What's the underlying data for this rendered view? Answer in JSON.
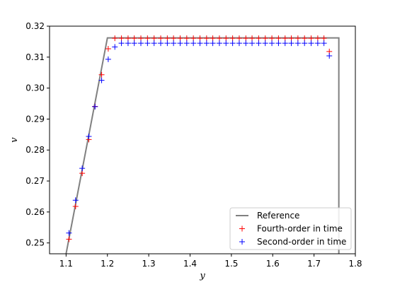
{
  "chart_data": {
    "type": "scatter",
    "title": "",
    "xlabel": "y",
    "ylabel": "v",
    "xlim": [
      1.06,
      1.8
    ],
    "ylim": [
      0.2465,
      0.32
    ],
    "xticks": [
      1.1,
      1.2,
      1.3,
      1.4,
      1.5,
      1.6,
      1.7,
      1.8
    ],
    "yticks": [
      0.25,
      0.26,
      0.27,
      0.28,
      0.29,
      0.3,
      0.31,
      0.32
    ],
    "xtick_labels": [
      "1.1",
      "1.2",
      "1.3",
      "1.4",
      "1.5",
      "1.6",
      "1.7",
      "1.8"
    ],
    "ytick_labels": [
      "0.25",
      "0.26",
      "0.27",
      "0.28",
      "0.29",
      "0.30",
      "0.31",
      "0.32"
    ],
    "grid": false,
    "legend_position": "lower-right",
    "series": [
      {
        "name": "Reference",
        "kind": "line",
        "color": "#808080",
        "x": [
          1.1,
          1.2,
          1.76,
          1.76
        ],
        "y": [
          0.2465,
          0.3162,
          0.3162,
          0.2465
        ]
      },
      {
        "name": "Fourth-order in time",
        "kind": "marker",
        "color": "#ff0000",
        "x": [
          1.107,
          1.123,
          1.139,
          1.155,
          1.17,
          1.186,
          1.202,
          1.218,
          1.234,
          1.25,
          1.265,
          1.281,
          1.297,
          1.313,
          1.329,
          1.345,
          1.36,
          1.376,
          1.392,
          1.408,
          1.424,
          1.44,
          1.455,
          1.471,
          1.487,
          1.503,
          1.519,
          1.535,
          1.55,
          1.566,
          1.582,
          1.598,
          1.614,
          1.63,
          1.645,
          1.661,
          1.677,
          1.693,
          1.709,
          1.724,
          1.737
        ],
        "y": [
          0.2512,
          0.2618,
          0.2725,
          0.2834,
          0.2941,
          0.3043,
          0.3127,
          0.3161,
          0.3161,
          0.3161,
          0.3161,
          0.3161,
          0.3161,
          0.3161,
          0.3161,
          0.3161,
          0.3161,
          0.3161,
          0.3161,
          0.3161,
          0.3161,
          0.3161,
          0.3161,
          0.3161,
          0.3161,
          0.3161,
          0.3161,
          0.3161,
          0.3161,
          0.3161,
          0.3161,
          0.3161,
          0.3161,
          0.3161,
          0.3161,
          0.3161,
          0.3161,
          0.3161,
          0.3161,
          0.3161,
          0.3118
        ]
      },
      {
        "name": "Second-order in time",
        "kind": "marker",
        "color": "#0000ff",
        "x": [
          1.107,
          1.123,
          1.139,
          1.155,
          1.17,
          1.186,
          1.202,
          1.218,
          1.234,
          1.25,
          1.265,
          1.281,
          1.297,
          1.313,
          1.329,
          1.345,
          1.36,
          1.376,
          1.392,
          1.408,
          1.424,
          1.44,
          1.455,
          1.471,
          1.487,
          1.503,
          1.519,
          1.535,
          1.55,
          1.566,
          1.582,
          1.598,
          1.614,
          1.63,
          1.645,
          1.661,
          1.677,
          1.693,
          1.709,
          1.724,
          1.737
        ],
        "y": [
          0.2532,
          0.2638,
          0.2741,
          0.2844,
          0.294,
          0.3025,
          0.3093,
          0.3133,
          0.3145,
          0.3145,
          0.3145,
          0.3145,
          0.3145,
          0.3145,
          0.3145,
          0.3145,
          0.3145,
          0.3145,
          0.3145,
          0.3145,
          0.3145,
          0.3145,
          0.3145,
          0.3145,
          0.3145,
          0.3145,
          0.3145,
          0.3145,
          0.3145,
          0.3145,
          0.3145,
          0.3145,
          0.3145,
          0.3145,
          0.3145,
          0.3145,
          0.3145,
          0.3145,
          0.3145,
          0.3145,
          0.3104
        ]
      }
    ]
  }
}
